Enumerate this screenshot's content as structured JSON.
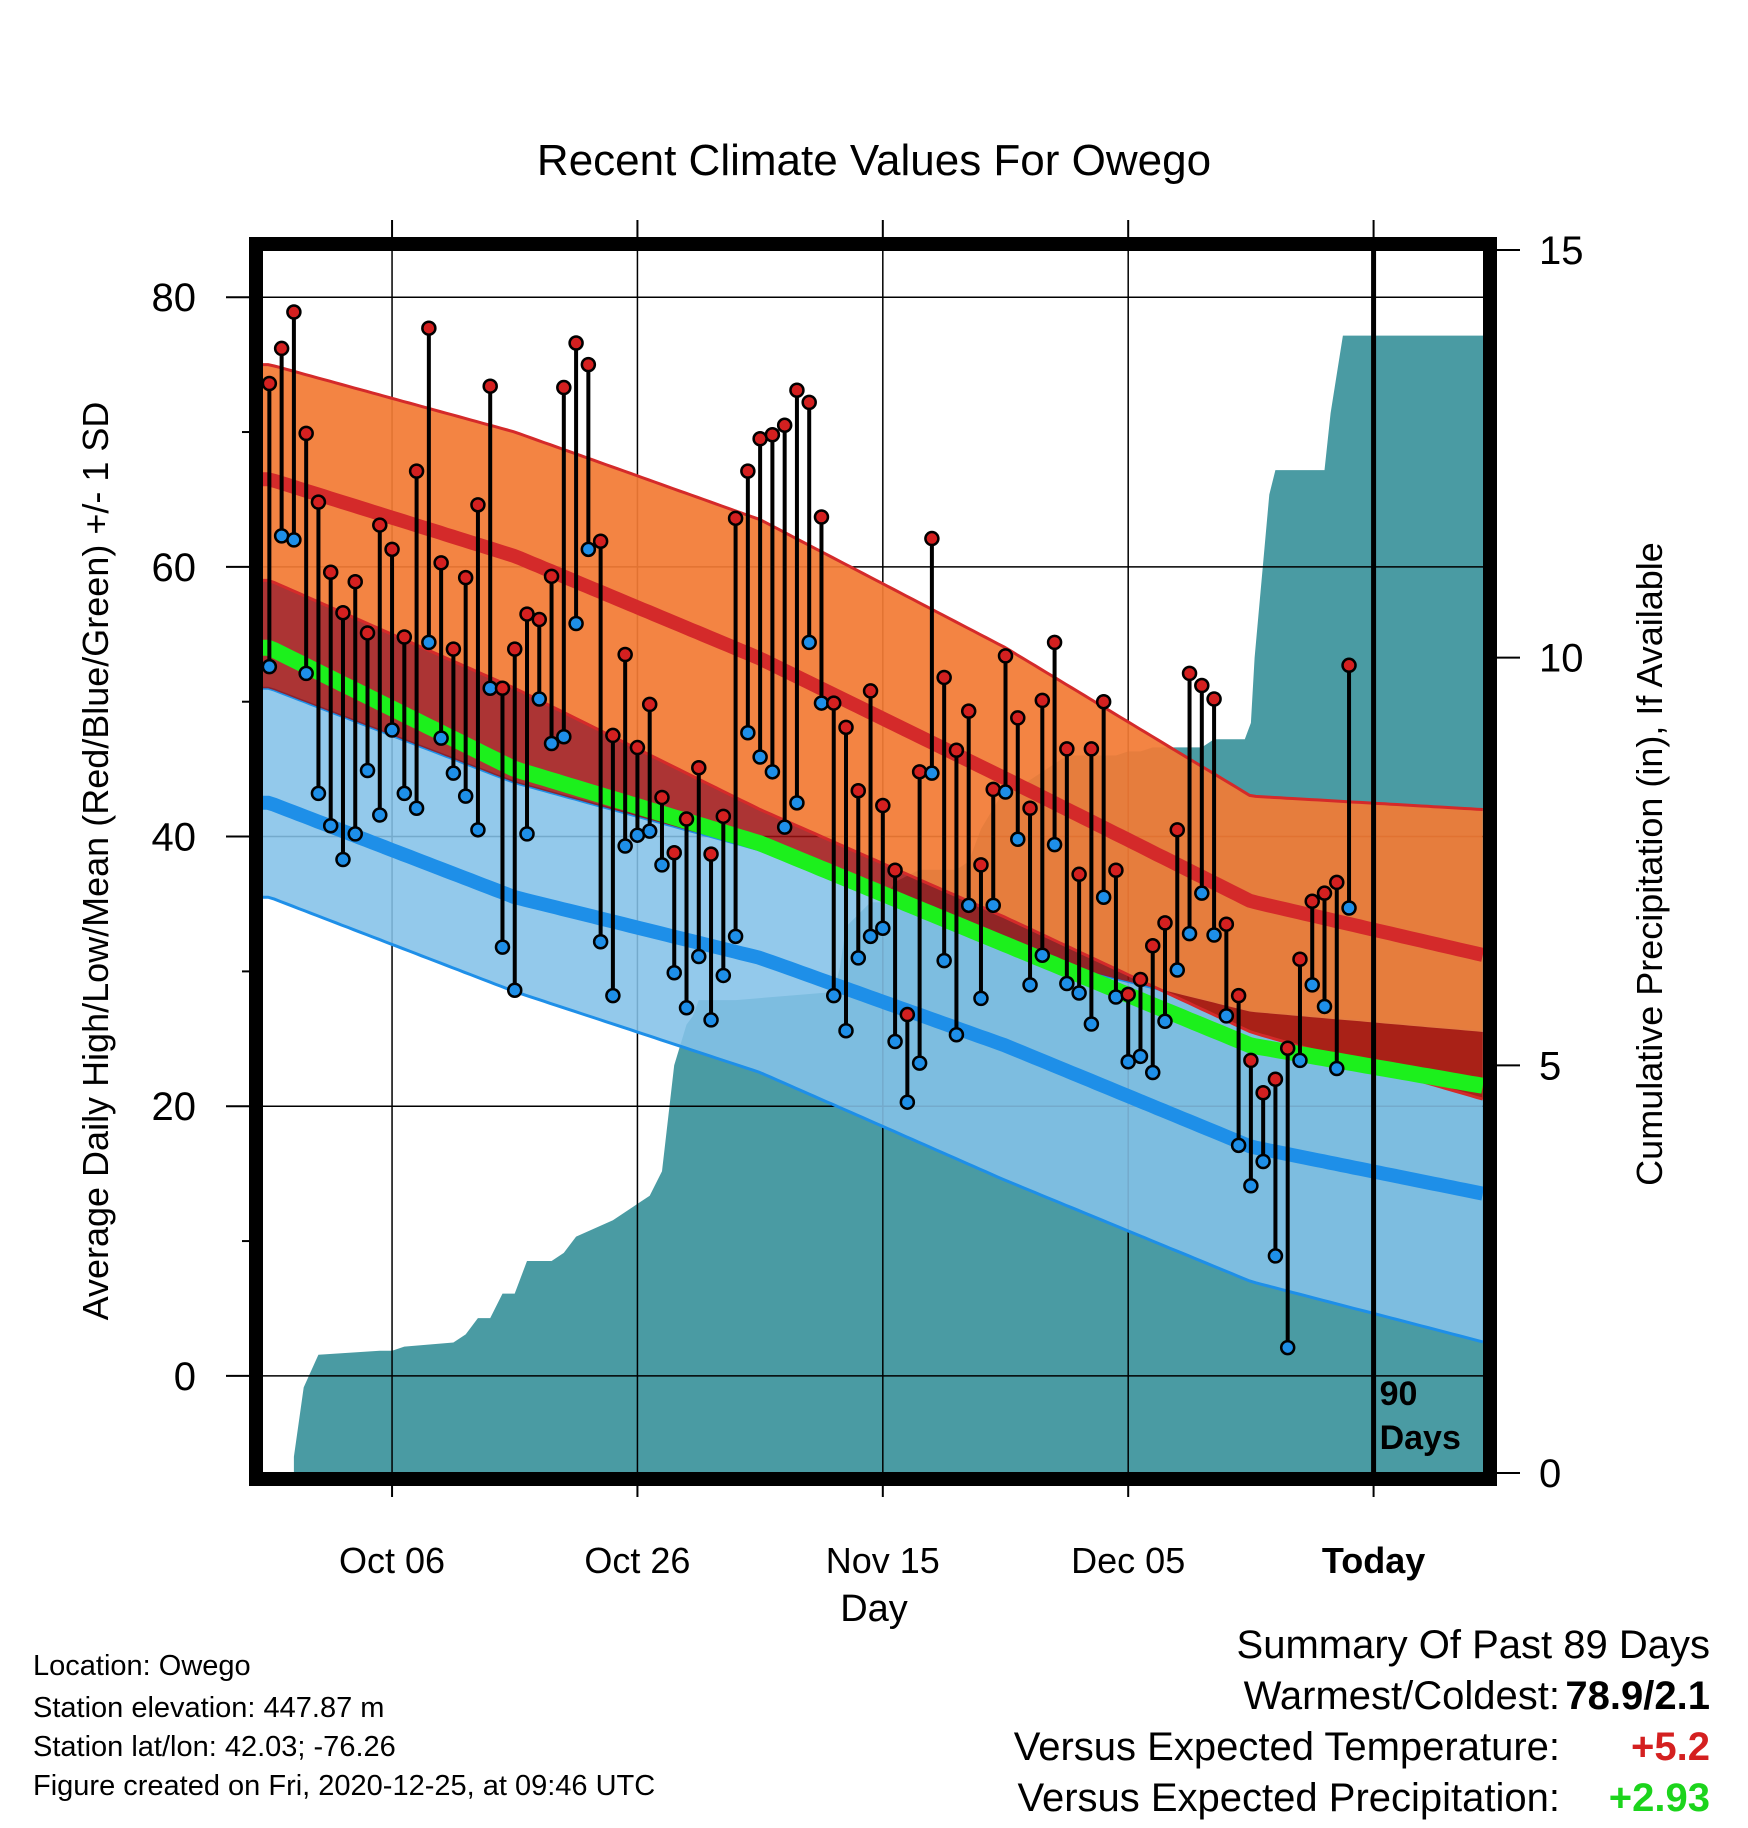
{
  "chart_data": {
    "type": "line",
    "title": "Recent Climate Values For Owego",
    "xlabel": "Day",
    "ylabel_left": "Average Daily High/Low/Mean (Red/Blue/Green) +/- 1 SD",
    "ylabel_right": "Cumulative Precipitation (in), If Available",
    "x_tick_labels": [
      "Oct 06",
      "Oct 26",
      "Nov 15",
      "Dec 05",
      "Today"
    ],
    "x_tick_days": [
      10,
      30,
      50,
      70,
      90
    ],
    "y_left_ticks": [
      0,
      20,
      40,
      60,
      80
    ],
    "y_left_range": [
      -7.2,
      83.5
    ],
    "y_right_ticks": [
      0,
      5,
      10,
      15
    ],
    "y_right_range": [
      0,
      15
    ],
    "x_range": [
      -0.6,
      99
    ],
    "annotation": [
      "90",
      "Days"
    ],
    "colors": {
      "high_band": "#f27b35",
      "high_mean": "#d42a2a",
      "low_band": "#84c2e8",
      "low_mean": "#1e8fe8",
      "mean_line": "#1cf01c",
      "overlap_band": "#9e1111",
      "precip": "#4a9ba3",
      "high_marker": "#d42020",
      "low_marker": "#1e8fe8"
    },
    "normals": {
      "days": [
        0,
        20,
        40,
        60,
        80,
        99
      ],
      "high_mean": [
        66.5,
        60.8,
        53.2,
        44.3,
        35.2,
        31.2
      ],
      "high_upper": [
        75.0,
        70.0,
        63.5,
        54.0,
        43.0,
        42.0
      ],
      "high_lower": [
        59.0,
        51.0,
        42.0,
        34.0,
        25.5,
        20.5
      ],
      "low_mean": [
        42.5,
        35.5,
        31.0,
        24.5,
        17.0,
        13.5
      ],
      "low_upper": [
        51.0,
        44.0,
        39.0,
        31.5,
        27.0,
        25.5
      ],
      "low_lower": [
        35.5,
        28.5,
        22.5,
        14.5,
        7.0,
        2.5
      ],
      "mean_temp": [
        54.0,
        45.0,
        39.5,
        32.0,
        24.5,
        21.5
      ]
    },
    "daily": {
      "highs": [
        73.6,
        76.2,
        78.9,
        69.9,
        64.8,
        59.6,
        56.6,
        58.9,
        55.1,
        63.1,
        61.3,
        54.8,
        67.1,
        77.7,
        60.3,
        53.9,
        59.2,
        64.6,
        73.4,
        51.0,
        53.9,
        56.5,
        56.1,
        59.3,
        73.3,
        76.6,
        75.0,
        61.9,
        47.5,
        53.5,
        46.6,
        49.8,
        42.9,
        38.8,
        41.3,
        45.1,
        38.7,
        41.5,
        63.6,
        67.1,
        69.5,
        69.8,
        70.5,
        73.1,
        72.2,
        63.7,
        49.9,
        48.1,
        43.4,
        50.8,
        42.3,
        37.5,
        26.8,
        44.8,
        62.1,
        51.8,
        46.4,
        49.3,
        37.9,
        43.5,
        53.4,
        48.8,
        42.1,
        50.1,
        54.4,
        46.5,
        37.2,
        46.5,
        50.0,
        37.5,
        28.3,
        29.4,
        31.9,
        33.6,
        40.5,
        52.1,
        51.2,
        50.2,
        33.5,
        28.2,
        23.4,
        21.0,
        22.0,
        24.3,
        30.9,
        35.2,
        35.8,
        36.6,
        52.7
      ],
      "lows": [
        52.6,
        62.3,
        62.0,
        52.1,
        43.2,
        40.8,
        38.3,
        40.2,
        44.9,
        41.6,
        47.9,
        43.2,
        42.1,
        54.4,
        47.3,
        44.7,
        43.0,
        40.5,
        51.0,
        31.8,
        28.6,
        40.2,
        50.2,
        46.9,
        47.4,
        55.8,
        61.3,
        32.2,
        28.2,
        39.3,
        40.1,
        40.4,
        37.9,
        29.9,
        27.3,
        31.1,
        26.4,
        29.7,
        32.6,
        47.7,
        45.9,
        44.8,
        40.7,
        42.5,
        54.4,
        49.9,
        28.2,
        25.6,
        31.0,
        32.6,
        33.2,
        24.8,
        20.3,
        23.2,
        44.7,
        30.8,
        25.3,
        34.9,
        28.0,
        34.9,
        43.3,
        39.8,
        29.0,
        31.2,
        39.4,
        29.1,
        28.4,
        26.1,
        35.5,
        28.1,
        23.3,
        23.7,
        22.5,
        26.3,
        30.1,
        32.8,
        35.8,
        32.7,
        26.7,
        17.1,
        14.1,
        15.9,
        8.9,
        2.1,
        23.4,
        29.0,
        27.4,
        22.8,
        34.7
      ]
    },
    "precip": {
      "days": [
        2,
        2.8,
        4,
        9,
        10,
        11,
        15,
        16,
        17,
        18,
        19,
        20,
        21,
        23,
        24,
        25,
        28,
        30,
        31,
        32,
        33,
        34,
        34.5,
        35,
        37,
        38,
        46,
        46.5,
        47,
        49,
        50,
        51,
        53,
        55,
        56,
        57,
        58,
        60,
        61,
        62,
        64,
        65,
        66,
        68,
        69,
        70,
        71,
        72,
        73,
        76,
        77,
        78,
        79.5,
        80,
        80.3,
        81.5,
        82,
        83,
        84,
        85,
        86,
        86.5,
        87.5,
        99
      ],
      "values": [
        0.2,
        1.05,
        1.45,
        1.5,
        1.5,
        1.55,
        1.6,
        1.7,
        1.9,
        1.9,
        2.2,
        2.2,
        2.6,
        2.6,
        2.7,
        2.9,
        3.1,
        3.3,
        3.4,
        3.7,
        5.0,
        5.5,
        5.6,
        5.8,
        5.8,
        5.8,
        5.9,
        6.2,
        6.7,
        7.0,
        7.0,
        7.25,
        7.4,
        7.4,
        7.4,
        7.5,
        7.9,
        8.4,
        8.4,
        8.5,
        8.7,
        8.8,
        8.8,
        8.8,
        8.8,
        8.85,
        8.85,
        8.9,
        8.9,
        8.9,
        9.0,
        9.0,
        9.0,
        9.2,
        10.0,
        12.0,
        12.3,
        12.3,
        12.3,
        12.3,
        12.3,
        13.0,
        13.95,
        13.95
      ]
    }
  },
  "info": {
    "location": "Location: Owego",
    "elevation": "Station elevation: 447.87 m",
    "latlon": "Station lat/lon: 42.03; -76.26",
    "created": "Figure created on Fri, 2020-12-25, at 09:46 UTC"
  },
  "summary": {
    "heading": "Summary Of Past 89 Days",
    "warmest_coldest_label": "Warmest/Coldest:",
    "warmest_coldest_value": "78.9/2.1",
    "temp_label": "Versus Expected Temperature:",
    "temp_value": "+5.2",
    "temp_color": "#d42020",
    "precip_label": "Versus Expected Precipitation:",
    "precip_value": "+2.93",
    "precip_color": "#1cd41c"
  }
}
